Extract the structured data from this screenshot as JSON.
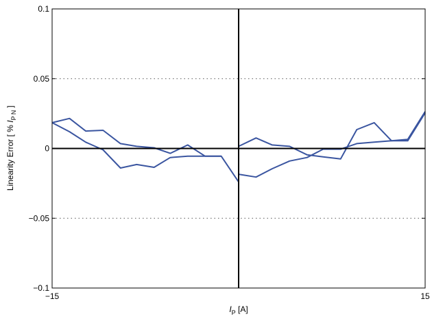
{
  "chart_data": {
    "type": "line",
    "title": "",
    "xlabel": {
      "prefix": "I",
      "sub": "P",
      "suffix": " [A]"
    },
    "ylabel": {
      "prefix": "Linearity Error [ % ",
      "var": "I",
      "sub": "P N",
      "suffix": " ]"
    },
    "xlim": [
      -15,
      15
    ],
    "ylim": [
      -0.1,
      0.1
    ],
    "x_ticks": [
      -15,
      15
    ],
    "x_tick_labels": [
      "−15",
      "15"
    ],
    "y_ticks": [
      -0.1,
      -0.05,
      0,
      0.05,
      0.1
    ],
    "y_tick_labels": [
      "−0.1",
      "−0.05",
      "0",
      "0.05",
      "0.1"
    ],
    "grid": "dotted horizontal lines at y = ±0.05",
    "zero_lines": true,
    "colors": {
      "series": "#3a55a0",
      "axes": "#000000",
      "grid": "#555555"
    },
    "series": [
      {
        "x": [
          -15,
          -13.6,
          -12.3,
          -10.9,
          -9.5,
          -8.2,
          -6.8,
          -5.5,
          -4.1,
          -2.7,
          -1.4,
          0
        ],
        "values": [
          0.0185,
          0.012,
          0.0045,
          -0.001,
          -0.014,
          -0.0115,
          -0.0135,
          -0.0065,
          -0.0055,
          -0.0055,
          -0.0055,
          -0.024
        ]
      },
      {
        "x": [
          0,
          1.4,
          2.7,
          4.1,
          5.5,
          6.8,
          8.2,
          9.5,
          10.9,
          12.3,
          13.6,
          15
        ],
        "values": [
          -0.0185,
          -0.0205,
          -0.0145,
          -0.009,
          -0.0065,
          -0.0005,
          -0.0005,
          0.0035,
          0.0045,
          0.0055,
          0.0065,
          0.0265
        ]
      },
      {
        "x": [
          -15,
          -13.6,
          -12.3,
          -10.9,
          -9.5,
          -8.2,
          -6.8,
          -5.5,
          -4.1,
          -2.7,
          -1.4
        ],
        "values": [
          0.0185,
          0.0215,
          0.0125,
          0.013,
          0.0035,
          0.0015,
          0.0005,
          -0.0035,
          0.0025,
          -0.0055,
          -0.0055
        ]
      },
      {
        "x": [
          0,
          1.4,
          2.7,
          4.1,
          5.5,
          6.8,
          8.2,
          9.5,
          10.9,
          12.3,
          13.6,
          15
        ],
        "values": [
          0.0015,
          0.0075,
          0.0025,
          0.0015,
          -0.0045,
          -0.006,
          -0.0075,
          0.0135,
          0.0185,
          0.0055,
          0.0055,
          0.0255
        ]
      }
    ]
  }
}
